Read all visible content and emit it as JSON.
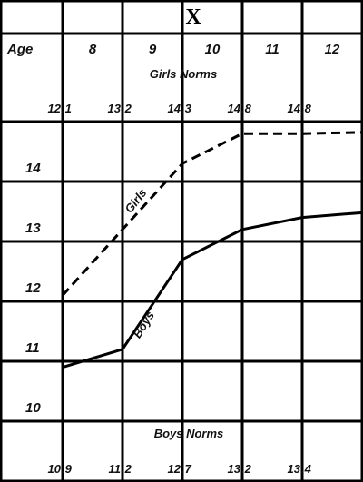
{
  "chart_data": {
    "type": "line",
    "title": "X",
    "xlabel": "Age",
    "categories": [
      "8",
      "9",
      "10",
      "11",
      "12"
    ],
    "ylim": [
      9.5,
      15.5
    ],
    "y_ticks": [
      "10",
      "11",
      "12",
      "13",
      "14"
    ],
    "series": [
      {
        "name": "Girls",
        "style": "dashed",
        "x": [
          7.5,
          8.5,
          9.5,
          10.5,
          11.5,
          12.5
        ],
        "y": [
          12.1,
          13.2,
          14.3,
          14.8,
          14.8,
          14.82
        ]
      },
      {
        "name": "Boys",
        "style": "solid",
        "x": [
          7.5,
          8.5,
          9.5,
          10.5,
          11.5,
          12.5
        ],
        "y": [
          10.9,
          11.2,
          12.7,
          13.2,
          13.4,
          13.48
        ]
      }
    ],
    "top_norms": {
      "title": "Girls Norms",
      "values": [
        "12.1",
        "13.2",
        "14.3",
        "14.8",
        "14.8"
      ]
    },
    "bottom_norms": {
      "title": "Boys Norms",
      "values": [
        "10.9",
        "11.2",
        "12.7",
        "13.2",
        "13.4"
      ]
    }
  }
}
